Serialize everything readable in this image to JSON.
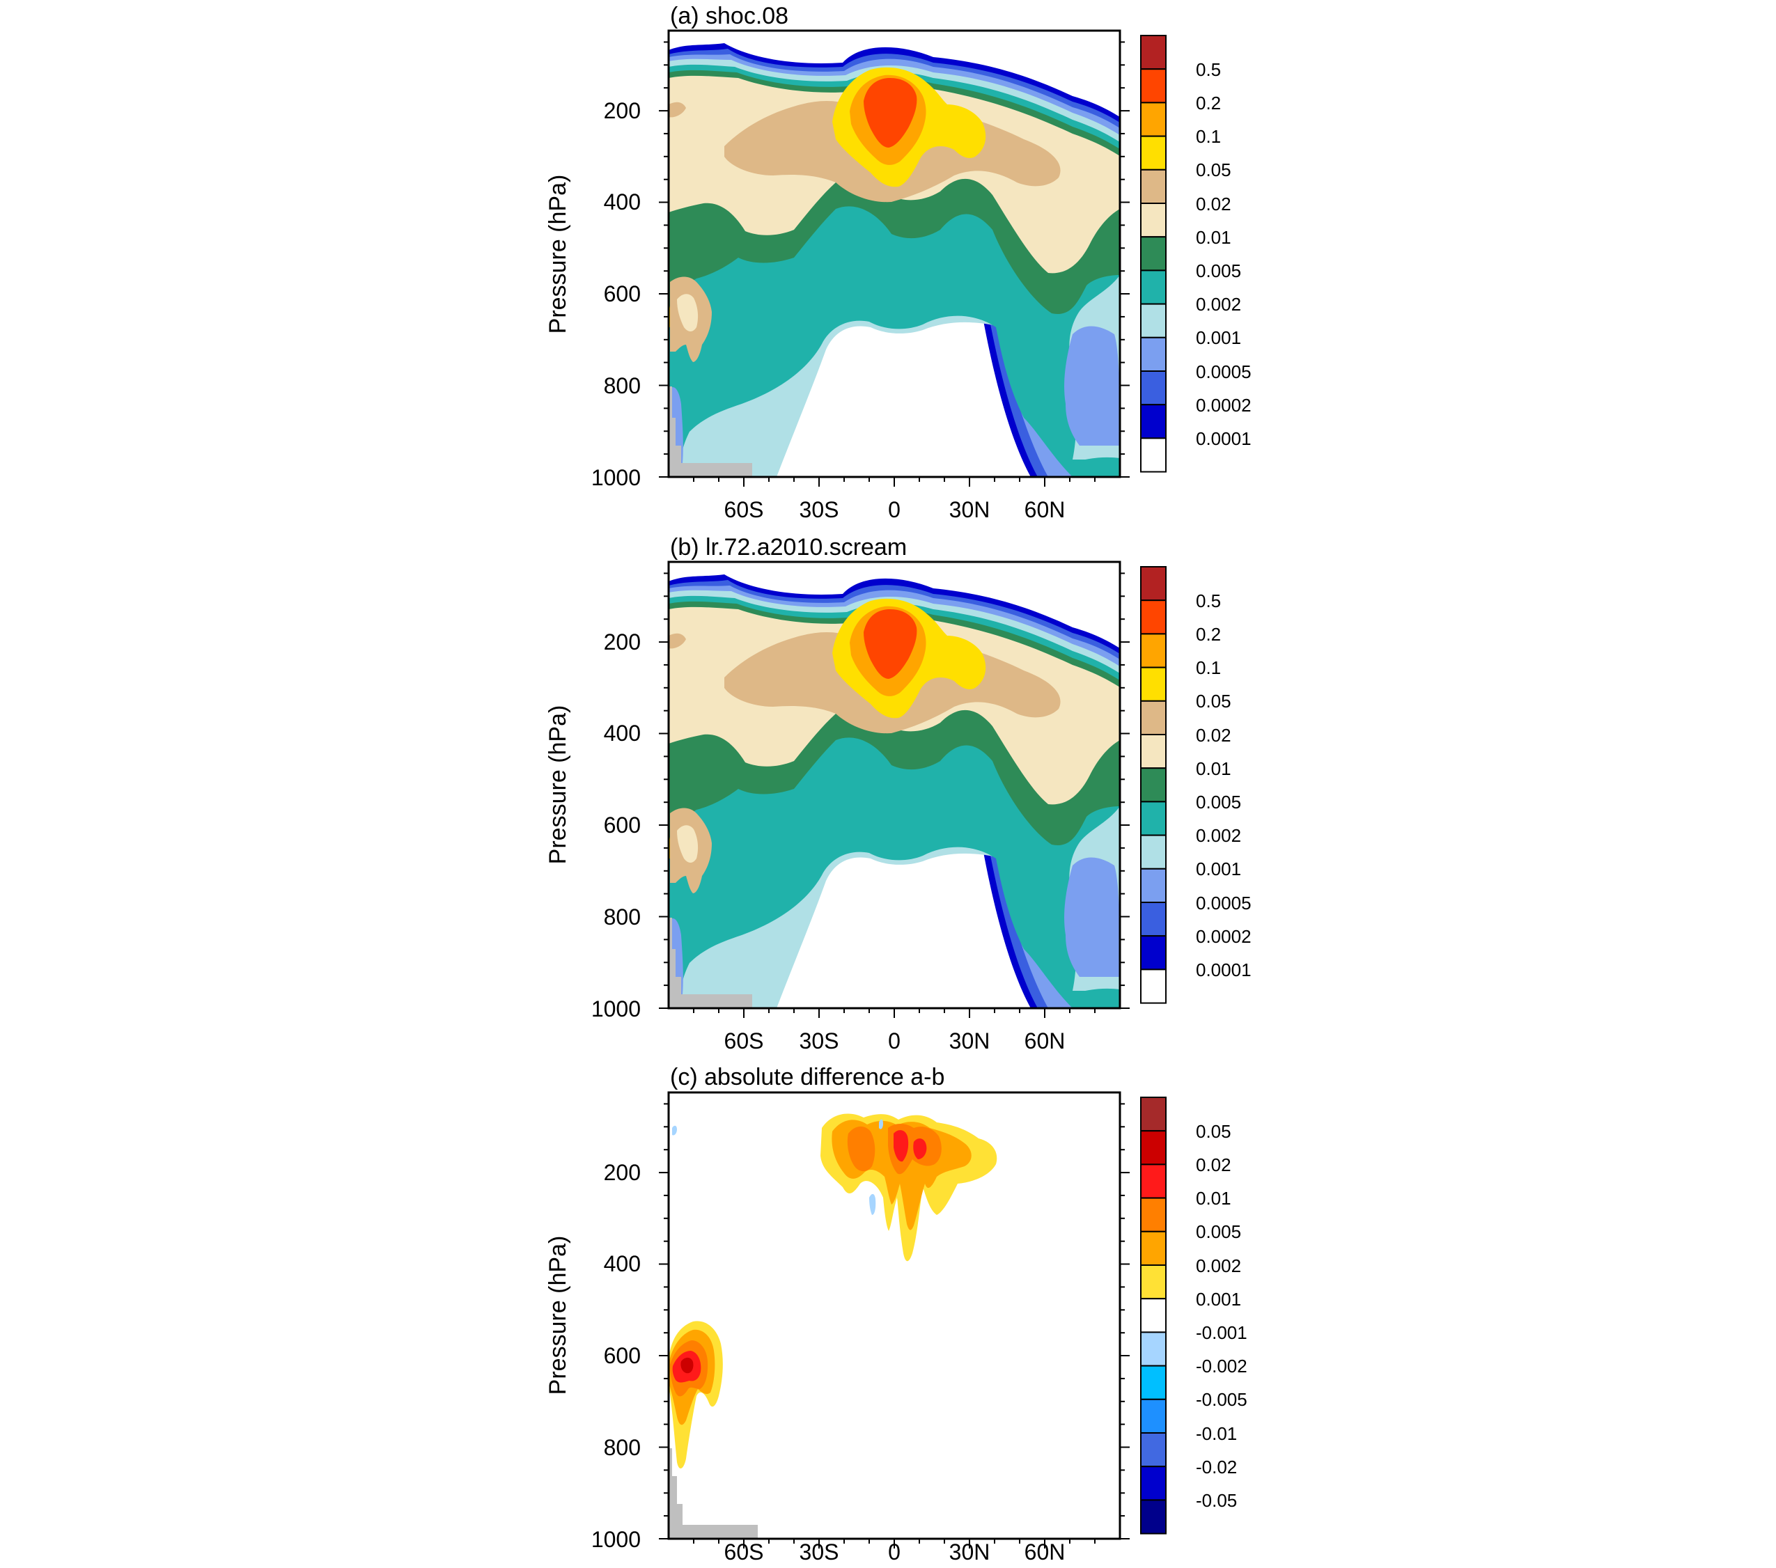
{
  "figure": {
    "colors": {
      "background": "#ffffff",
      "land_mask": "#bfbfbf",
      "frame": "#000000"
    }
  },
  "chart_data": [
    {
      "type": "contour",
      "title": "(a) shoc.08",
      "xlabel": "",
      "ylabel": "Pressure (hPa)",
      "x_ticks": [
        "60S",
        "30S",
        "0",
        "30N",
        "60N"
      ],
      "y_ticks": [
        "200",
        "400",
        "600",
        "800",
        "1000"
      ],
      "xlim": [
        -90,
        90
      ],
      "ylim": [
        1000,
        25
      ],
      "colorbar": {
        "labels": [
          "0.5",
          "0.2",
          "0.1",
          "0.05",
          "0.02",
          "0.01",
          "0.005",
          "0.002",
          "0.001",
          "0.0005",
          "0.0002",
          "0.0001"
        ],
        "colors": [
          "#b22222",
          "#ff4500",
          "#ffa500",
          "#ffdf00",
          "#deb887",
          "#f5e6c0",
          "#2e8b57",
          "#20b2aa",
          "#b0e0e6",
          "#7b9ff0",
          "#3a5fe0",
          "#0000cd",
          "#ffffff"
        ]
      }
    },
    {
      "type": "contour",
      "title": "(b) lr.72.a2010.scream",
      "xlabel": "",
      "ylabel": "Pressure (hPa)",
      "x_ticks": [
        "60S",
        "30S",
        "0",
        "30N",
        "60N"
      ],
      "y_ticks": [
        "200",
        "400",
        "600",
        "800",
        "1000"
      ],
      "xlim": [
        -90,
        90
      ],
      "ylim": [
        1000,
        25
      ],
      "colorbar": {
        "labels": [
          "0.5",
          "0.2",
          "0.1",
          "0.05",
          "0.02",
          "0.01",
          "0.005",
          "0.002",
          "0.001",
          "0.0005",
          "0.0002",
          "0.0001"
        ],
        "colors": [
          "#b22222",
          "#ff4500",
          "#ffa500",
          "#ffdf00",
          "#deb887",
          "#f5e6c0",
          "#2e8b57",
          "#20b2aa",
          "#b0e0e6",
          "#7b9ff0",
          "#3a5fe0",
          "#0000cd",
          "#ffffff"
        ]
      }
    },
    {
      "type": "contour",
      "title": "(c) absolute difference a-b",
      "xlabel": "",
      "ylabel": "Pressure (hPa)",
      "x_ticks": [
        "60S",
        "30S",
        "0",
        "30N",
        "60N"
      ],
      "y_ticks": [
        "200",
        "400",
        "600",
        "800",
        "1000"
      ],
      "xlim": [
        -90,
        90
      ],
      "ylim": [
        1000,
        25
      ],
      "colorbar": {
        "labels": [
          "0.05",
          "0.02",
          "0.01",
          "0.005",
          "0.002",
          "0.001",
          "-0.001",
          "-0.002",
          "-0.005",
          "-0.01",
          "-0.02",
          "-0.05"
        ],
        "colors": [
          "#a52a2a",
          "#cc0000",
          "#ff1a1a",
          "#ff7f00",
          "#ffa500",
          "#ffe135",
          "#ffffff",
          "#a6d5ff",
          "#00bfff",
          "#1e90ff",
          "#4169e1",
          "#0000cd",
          "#00008b"
        ]
      }
    }
  ]
}
